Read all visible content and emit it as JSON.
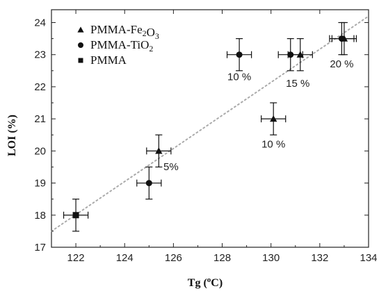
{
  "chart_data": {
    "type": "scatter",
    "xlabel_main": "Tg (",
    "xlabel_sup": "o",
    "xlabel_end": "C)",
    "ylabel": "LOI (%)",
    "xlim": [
      121,
      134
    ],
    "ylim": [
      17,
      24.4
    ],
    "xticks": [
      122,
      124,
      126,
      128,
      130,
      132,
      134
    ],
    "yticks": [
      17,
      18,
      19,
      20,
      21,
      22,
      23,
      24
    ],
    "grid": false,
    "legend_position": "top-left",
    "legend": [
      {
        "marker": "triangle",
        "base": "PMMA-Fe",
        "sub1": "2",
        "mid": "O",
        "sub2": "3"
      },
      {
        "marker": "circle",
        "base": "PMMA-TiO",
        "sub1": "2",
        "mid": "",
        "sub2": ""
      },
      {
        "marker": "square",
        "base": "PMMA",
        "sub1": "",
        "mid": "",
        "sub2": ""
      }
    ],
    "points": [
      {
        "marker": "square",
        "x": 122.0,
        "y": 18.0,
        "xerr": 0.5,
        "yerr": 0.5
      },
      {
        "marker": "circle",
        "x": 125.0,
        "y": 19.0,
        "xerr": 0.5,
        "yerr": 0.5
      },
      {
        "marker": "triangle",
        "x": 125.4,
        "y": 20.0,
        "xerr": 0.5,
        "yerr": 0.5
      },
      {
        "marker": "circle",
        "x": 128.7,
        "y": 23.0,
        "xerr": 0.5,
        "yerr": 0.5
      },
      {
        "marker": "triangle",
        "x": 130.1,
        "y": 21.0,
        "xerr": 0.5,
        "yerr": 0.5
      },
      {
        "marker": "circle",
        "x": 130.8,
        "y": 23.0,
        "xerr": 0.5,
        "yerr": 0.5
      },
      {
        "marker": "triangle",
        "x": 131.2,
        "y": 23.0,
        "xerr": 0.5,
        "yerr": 0.5
      },
      {
        "marker": "circle",
        "x": 132.9,
        "y": 23.5,
        "xerr": 0.5,
        "yerr": 0.5
      },
      {
        "marker": "triangle",
        "x": 133.0,
        "y": 23.5,
        "xerr": 0.5,
        "yerr": 0.5
      }
    ],
    "trendline": {
      "x": [
        121,
        134
      ],
      "y": [
        17.5,
        24.2
      ],
      "style": "dotted"
    },
    "annotations": [
      {
        "text": "5%",
        "x": 125.9,
        "y": 19.4
      },
      {
        "text": "10 %",
        "x": 128.7,
        "y": 22.2
      },
      {
        "text": "10 %",
        "x": 130.1,
        "y": 20.1
      },
      {
        "text": "15 %",
        "x": 131.1,
        "y": 22.0
      },
      {
        "text": "20 %",
        "x": 132.9,
        "y": 22.6
      }
    ],
    "colors": {
      "marker": "#111111",
      "trend": "#aaaaaa",
      "axis": "#222222"
    }
  }
}
